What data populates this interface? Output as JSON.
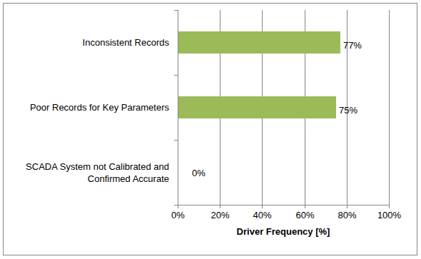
{
  "chart_data": {
    "type": "bar",
    "orientation": "horizontal",
    "categories": [
      "Inconsistent Records",
      "Poor Records for Key Parameters",
      "SCADA System not Calibrated and Confirmed Accurate"
    ],
    "values": [
      77,
      75,
      0
    ],
    "value_labels": [
      "77%",
      "75%",
      "0%"
    ],
    "color": "#9bbb59",
    "x_label": "Driver Frequency [%]",
    "xlim": [
      0,
      100
    ],
    "xticks": [
      {
        "value": 0,
        "label": "0%"
      },
      {
        "value": 20,
        "label": "20%"
      },
      {
        "value": 40,
        "label": "40%"
      },
      {
        "value": 60,
        "label": "60%"
      },
      {
        "value": 80,
        "label": "80%"
      },
      {
        "value": 100,
        "label": "100%"
      }
    ],
    "grid": true,
    "data_labels": true
  }
}
